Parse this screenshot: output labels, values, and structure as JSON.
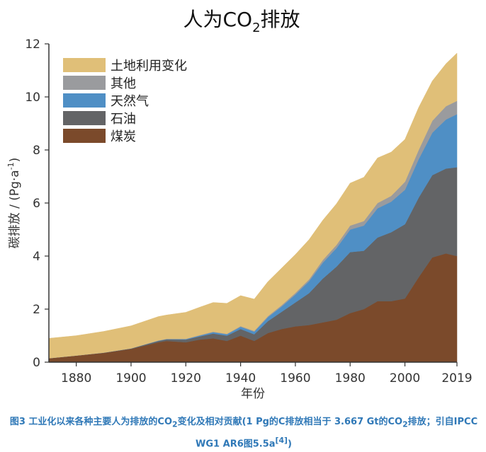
{
  "chart_data": {
    "type": "area",
    "stacked": true,
    "title_prefix": "人为CO",
    "title_sub": "2",
    "title_suffix": "排放",
    "xlabel": "年份",
    "ylabel_text": "碳排放 / (Pg·a",
    "ylabel_sup": "-1",
    "ylabel_close": ")",
    "xlim": [
      1870,
      2019
    ],
    "ylim": [
      0,
      12
    ],
    "x_ticks": [
      "1880",
      "1900",
      "1920",
      "1940",
      "1960",
      "1980",
      "2000",
      "2019"
    ],
    "y_ticks": [
      "0",
      "2",
      "4",
      "6",
      "8",
      "10",
      "12"
    ],
    "grid": false,
    "legend_position": "top-left",
    "x": [
      1870,
      1880,
      1890,
      1900,
      1910,
      1913,
      1920,
      1925,
      1930,
      1935,
      1940,
      1945,
      1950,
      1955,
      1960,
      1965,
      1970,
      1975,
      1980,
      1985,
      1990,
      1995,
      2000,
      2005,
      2010,
      2015,
      2019
    ],
    "series": [
      {
        "name": "煤炭",
        "color": "#7b4a2b",
        "values": [
          0.15,
          0.25,
          0.35,
          0.5,
          0.75,
          0.8,
          0.75,
          0.85,
          0.9,
          0.8,
          1.0,
          0.8,
          1.1,
          1.25,
          1.35,
          1.4,
          1.5,
          1.6,
          1.85,
          2.0,
          2.3,
          2.3,
          2.4,
          3.2,
          3.95,
          4.1,
          4.0
        ]
      },
      {
        "name": "石油",
        "color": "#636466",
        "values": [
          0.0,
          0.0,
          0.01,
          0.02,
          0.05,
          0.06,
          0.1,
          0.12,
          0.18,
          0.2,
          0.25,
          0.25,
          0.45,
          0.65,
          0.9,
          1.2,
          1.65,
          2.0,
          2.3,
          2.2,
          2.4,
          2.6,
          2.8,
          3.0,
          3.1,
          3.2,
          3.35
        ]
      },
      {
        "name": "天然气",
        "color": "#4f8fc5",
        "values": [
          0.0,
          0.0,
          0.0,
          0.0,
          0.01,
          0.01,
          0.02,
          0.03,
          0.05,
          0.05,
          0.08,
          0.1,
          0.15,
          0.2,
          0.3,
          0.45,
          0.6,
          0.7,
          0.85,
          0.95,
          1.1,
          1.15,
          1.3,
          1.45,
          1.6,
          1.85,
          2.0
        ]
      },
      {
        "name": "其他",
        "color": "#9a9b9e",
        "values": [
          0.0,
          0.0,
          0.0,
          0.0,
          0.01,
          0.01,
          0.01,
          0.02,
          0.02,
          0.02,
          0.03,
          0.03,
          0.04,
          0.05,
          0.06,
          0.07,
          0.1,
          0.12,
          0.15,
          0.17,
          0.2,
          0.22,
          0.3,
          0.35,
          0.45,
          0.5,
          0.5
        ]
      },
      {
        "name": "土地利用变化",
        "color": "#e0bf78",
        "values": [
          0.75,
          0.75,
          0.8,
          0.85,
          0.9,
          0.9,
          1.0,
          1.05,
          1.1,
          1.15,
          1.15,
          1.2,
          1.3,
          1.4,
          1.45,
          1.5,
          1.5,
          1.55,
          1.6,
          1.65,
          1.7,
          1.65,
          1.6,
          1.6,
          1.5,
          1.6,
          1.8
        ]
      }
    ]
  },
  "caption": {
    "part1": "图3 工业化以来各种主要人为排放的CO",
    "sub1": "2",
    "part2": "变化及相对贡献(1 Pg的C排放相当于 3.667 Gt的CO",
    "sub2": "2",
    "part3": "排放；引自IPCC WG1 AR6图5.5a",
    "ref": "[4]",
    "part4": ")"
  }
}
